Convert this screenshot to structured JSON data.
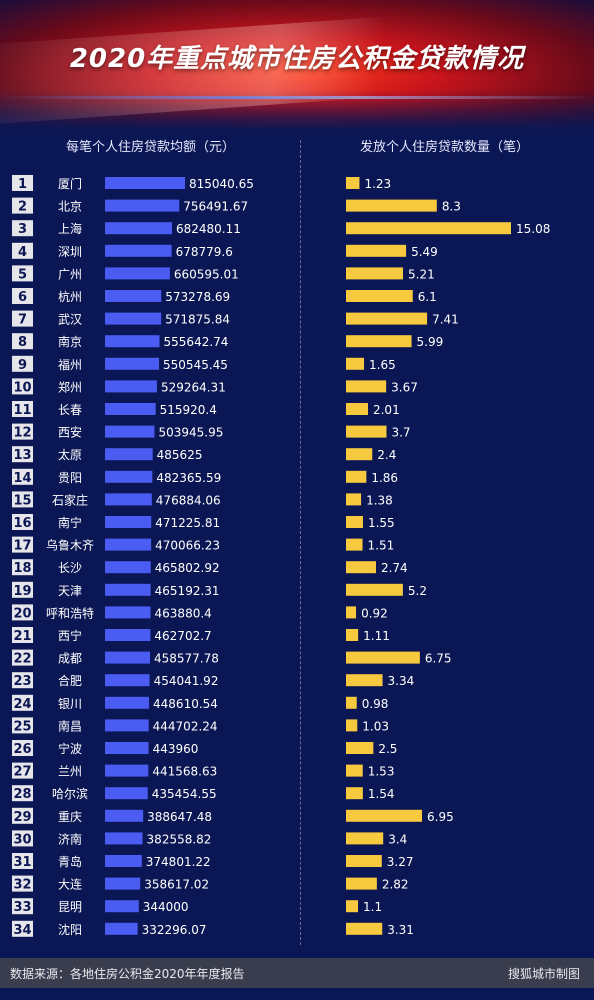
{
  "header": {
    "title": "2020年重点城市住房公积金贷款情况"
  },
  "columns": {
    "left_label": "每笔个人住房贷款均额（元）",
    "right_label": "发放个人住房贷款数量（笔）"
  },
  "footer": {
    "source": "数据来源：各地住房公积金2020年年度报告",
    "credit": "搜狐城市制图"
  },
  "colors": {
    "left_bar": "#4a5cf2",
    "right_bar": "#f7c93e",
    "rank_box": "#e6e6ea",
    "rank_text": "#0b1754",
    "background": "#0b1754"
  },
  "chart_data": [
    {
      "type": "bar",
      "orientation": "horizontal",
      "title": "每笔个人住房贷款均额（元）",
      "categories": [
        "厦门",
        "北京",
        "上海",
        "深圳",
        "广州",
        "杭州",
        "武汉",
        "南京",
        "福州",
        "郑州",
        "长春",
        "西安",
        "太原",
        "贵阳",
        "石家庄",
        "南宁",
        "乌鲁木齐",
        "长沙",
        "天津",
        "呼和浩特",
        "西宁",
        "成都",
        "合肥",
        "银川",
        "南昌",
        "宁波",
        "兰州",
        "哈尔滨",
        "重庆",
        "济南",
        "青岛",
        "大连",
        "昆明",
        "沈阳"
      ],
      "ranks": [
        "1",
        "2",
        "3",
        "4",
        "5",
        "6",
        "7",
        "8",
        "9",
        "10",
        "11",
        "12",
        "13",
        "14",
        "15",
        "16",
        "17",
        "18",
        "19",
        "20",
        "21",
        "22",
        "23",
        "24",
        "25",
        "26",
        "27",
        "28",
        "29",
        "30",
        "31",
        "32",
        "33",
        "34"
      ],
      "values": [
        815040.65,
        756491.67,
        682480.11,
        678779.6,
        660595.01,
        573278.69,
        571875.84,
        555642.74,
        550545.45,
        529264.31,
        515920.4,
        503945.95,
        485625,
        482365.59,
        476884.06,
        471225.81,
        470066.23,
        465802.92,
        465192.31,
        463880.4,
        462702.7,
        458577.78,
        454041.92,
        448610.54,
        444702.24,
        443960,
        441568.63,
        435454.55,
        388647.48,
        382558.82,
        374801.22,
        358617.02,
        344000,
        332296.07
      ],
      "labels": [
        "815040.65",
        "756491.67",
        "682480.11",
        "678779.6",
        "660595.01",
        "573278.69",
        "571875.84",
        "555642.74",
        "550545.45",
        "529264.31",
        "515920.4",
        "503945.95",
        "485625",
        "482365.59",
        "476884.06",
        "471225.81",
        "470066.23",
        "465802.92",
        "465192.31",
        "463880.4",
        "462702.7",
        "458577.78",
        "454041.92",
        "448610.54",
        "444702.24",
        "443960",
        "441568.63",
        "435454.55",
        "388647.48",
        "382558.82",
        "374801.22",
        "358617.02",
        "344000",
        "332296.07"
      ]
    },
    {
      "type": "bar",
      "orientation": "horizontal",
      "title": "发放个人住房贷款数量（笔）",
      "categories": [
        "厦门",
        "北京",
        "上海",
        "深圳",
        "广州",
        "杭州",
        "武汉",
        "南京",
        "福州",
        "郑州",
        "长春",
        "西安",
        "太原",
        "贵阳",
        "石家庄",
        "南宁",
        "乌鲁木齐",
        "长沙",
        "天津",
        "呼和浩特",
        "西宁",
        "成都",
        "合肥",
        "银川",
        "南昌",
        "宁波",
        "兰州",
        "哈尔滨",
        "重庆",
        "济南",
        "青岛",
        "大连",
        "昆明",
        "沈阳"
      ],
      "values": [
        1.23,
        8.3,
        15.08,
        5.49,
        5.21,
        6.1,
        7.41,
        5.99,
        1.65,
        3.67,
        2.01,
        3.7,
        2.4,
        1.86,
        1.38,
        1.55,
        1.51,
        2.74,
        5.2,
        0.92,
        1.11,
        6.75,
        3.34,
        0.98,
        1.03,
        2.5,
        1.53,
        1.54,
        6.95,
        3.4,
        3.27,
        2.82,
        1.1,
        3.31
      ],
      "labels": [
        "1.23",
        "8.3",
        "15.08",
        "5.49",
        "5.21",
        "6.1",
        "7.41",
        "5.99",
        "1.65",
        "3.67",
        "2.01",
        "3.7",
        "2.4",
        "1.86",
        "1.38",
        "1.55",
        "1.51",
        "2.74",
        "5.2",
        "0.92",
        "1.11",
        "6.75",
        "3.34",
        "0.98",
        "1.03",
        "2.5",
        "1.53",
        "1.54",
        "6.95",
        "3.4",
        "3.27",
        "2.82",
        "1.1",
        "3.31"
      ]
    }
  ]
}
